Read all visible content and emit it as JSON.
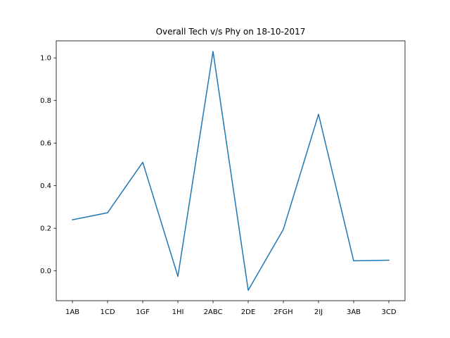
{
  "chart_data": {
    "type": "line",
    "title": "Overall Tech v/s Phy on 18-10-2017",
    "xlabel": "",
    "ylabel": "",
    "categories": [
      "1AB",
      "1CD",
      "1GF",
      "1HI",
      "2ABC",
      "2DE",
      "2FGH",
      "2IJ",
      "3AB",
      "3CD"
    ],
    "series": [
      {
        "values": [
          0.24,
          0.273,
          0.51,
          -0.026,
          1.03,
          -0.091,
          0.195,
          0.735,
          0.047,
          0.05
        ]
      }
    ],
    "ylim": [
      -0.14,
      1.08
    ],
    "yticks": [
      0.0,
      0.2,
      0.4,
      0.6,
      0.8,
      1.0
    ],
    "ytick_labels": [
      "0.0",
      "0.2",
      "0.4",
      "0.6",
      "0.8",
      "1.0"
    ],
    "grid": false,
    "line_color": "#1f77b4"
  }
}
